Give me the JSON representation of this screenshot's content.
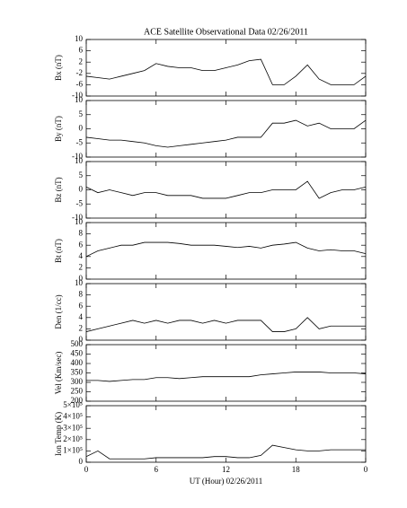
{
  "chart_data": [
    {
      "type": "line",
      "title": "ACE Satellite Observational Data   02/26/2011",
      "y_label": "Bx (nT)",
      "ylim": [
        -10,
        10
      ],
      "yticks": [
        -10,
        -6,
        -2,
        2,
        6,
        10
      ],
      "x": [
        0,
        1,
        2,
        3,
        4,
        5,
        6,
        7,
        8,
        9,
        10,
        11,
        12,
        13,
        14,
        15,
        16,
        17,
        18,
        19,
        20,
        21,
        22,
        23,
        24
      ],
      "series": [
        {
          "name": "Bx",
          "color": "#000000",
          "values": [
            -3,
            -3.5,
            -4,
            -3,
            -2,
            -1,
            1.5,
            0.5,
            0,
            0,
            -1,
            -1,
            0,
            1,
            2.5,
            3,
            -6,
            -6,
            -3,
            1,
            -4,
            -6,
            -6,
            -6,
            -3
          ]
        }
      ]
    },
    {
      "type": "line",
      "y_label": "By (nT)",
      "ylim": [
        -10,
        10
      ],
      "yticks": [
        -10,
        -5,
        0,
        5,
        10
      ],
      "x": [
        0,
        1,
        2,
        3,
        4,
        5,
        6,
        7,
        8,
        9,
        10,
        11,
        12,
        13,
        14,
        15,
        16,
        17,
        18,
        19,
        20,
        21,
        22,
        23,
        24
      ],
      "series": [
        {
          "name": "By",
          "color": "#000000",
          "values": [
            -3,
            -3.5,
            -4,
            -4,
            -4.5,
            -5,
            -6,
            -6.5,
            -6,
            -5.5,
            -5,
            -4.5,
            -4,
            -3,
            -3,
            -3,
            2,
            2,
            3,
            1,
            2,
            0,
            0,
            0,
            3
          ]
        }
      ]
    },
    {
      "type": "line",
      "y_label": "Bz (nT)",
      "ylim": [
        -10,
        10
      ],
      "yticks": [
        -10,
        -5,
        0,
        5,
        10
      ],
      "x": [
        0,
        1,
        2,
        3,
        4,
        5,
        6,
        7,
        8,
        9,
        10,
        11,
        12,
        13,
        14,
        15,
        16,
        17,
        18,
        19,
        20,
        21,
        22,
        23,
        24
      ],
      "series": [
        {
          "name": "Bz",
          "color": "#000000",
          "values": [
            1,
            -1,
            0,
            -1,
            -2,
            -1,
            -1,
            -2,
            -2,
            -2,
            -3,
            -3,
            -3,
            -2,
            -1,
            -1,
            0,
            0,
            0,
            3,
            -3,
            -1,
            0,
            0,
            1
          ]
        }
      ]
    },
    {
      "type": "line",
      "y_label": "Bt (nT)",
      "ylim": [
        0,
        10
      ],
      "yticks": [
        0,
        2,
        4,
        6,
        8,
        10
      ],
      "x": [
        0,
        1,
        2,
        3,
        4,
        5,
        6,
        7,
        8,
        9,
        10,
        11,
        12,
        13,
        14,
        15,
        16,
        17,
        18,
        19,
        20,
        21,
        22,
        23,
        24
      ],
      "series": [
        {
          "name": "Bt",
          "color": "#000000",
          "values": [
            4,
            5,
            5.5,
            6,
            6,
            6.5,
            6.5,
            6.5,
            6.3,
            6,
            6,
            6,
            5.8,
            5.6,
            5.8,
            5.5,
            6,
            6.2,
            6.5,
            5.5,
            5,
            5.2,
            5,
            5,
            4.5
          ]
        }
      ]
    },
    {
      "type": "line",
      "y_label": "Den (1/cc)",
      "ylim": [
        0,
        10
      ],
      "yticks": [
        0,
        2,
        4,
        6,
        8,
        10
      ],
      "x": [
        0,
        1,
        2,
        3,
        4,
        5,
        6,
        7,
        8,
        9,
        10,
        11,
        12,
        13,
        14,
        15,
        16,
        17,
        18,
        19,
        20,
        21,
        22,
        23,
        24
      ],
      "series": [
        {
          "name": "Den",
          "color": "#000000",
          "values": [
            1.5,
            2,
            2.5,
            3,
            3.5,
            3,
            3.5,
            3,
            3.5,
            3.5,
            3,
            3.5,
            3,
            3.5,
            3.5,
            3.5,
            1.5,
            1.5,
            2,
            4,
            2,
            2.5,
            2.5,
            2.5,
            2.5
          ]
        }
      ]
    },
    {
      "type": "line",
      "y_label": "Vel (Km/sec)",
      "ylim": [
        200,
        500
      ],
      "yticks": [
        200,
        250,
        300,
        350,
        400,
        450,
        500
      ],
      "x": [
        0,
        1,
        2,
        3,
        4,
        5,
        6,
        7,
        8,
        9,
        10,
        11,
        12,
        13,
        14,
        15,
        16,
        17,
        18,
        19,
        20,
        21,
        22,
        23,
        24
      ],
      "series": [
        {
          "name": "Vel",
          "color": "#000000",
          "values": [
            310,
            310,
            305,
            310,
            315,
            315,
            325,
            325,
            320,
            325,
            330,
            330,
            330,
            330,
            330,
            340,
            345,
            350,
            355,
            355,
            355,
            350,
            350,
            350,
            345
          ]
        }
      ]
    },
    {
      "type": "line",
      "y_label": "Ion Temp (K)",
      "x_label": "UT (Hour)  02/26/2011",
      "ylim": [
        0,
        500000
      ],
      "yticks": [
        0,
        {
          "value": 100000,
          "label": "1×10⁵"
        },
        {
          "value": 200000,
          "label": "2×10⁵"
        },
        {
          "value": 300000,
          "label": "3×10⁵"
        },
        {
          "value": 400000,
          "label": "4×10⁵"
        },
        {
          "value": 500000,
          "label": "5×10⁵"
        }
      ],
      "xlim": [
        0,
        24
      ],
      "xticks": [
        0,
        6,
        12,
        18,
        {
          "value": 24,
          "label": "0"
        }
      ],
      "x": [
        0,
        1,
        2,
        3,
        4,
        5,
        6,
        7,
        8,
        9,
        10,
        11,
        12,
        13,
        14,
        15,
        16,
        17,
        18,
        19,
        20,
        21,
        22,
        23,
        24
      ],
      "series": [
        {
          "name": "Ion Temp",
          "color": "#000000",
          "values": [
            50000,
            100000,
            30000,
            30000,
            30000,
            30000,
            40000,
            40000,
            40000,
            40000,
            40000,
            50000,
            50000,
            40000,
            40000,
            60000,
            150000,
            130000,
            110000,
            100000,
            100000,
            110000,
            110000,
            110000,
            110000
          ]
        }
      ]
    }
  ]
}
